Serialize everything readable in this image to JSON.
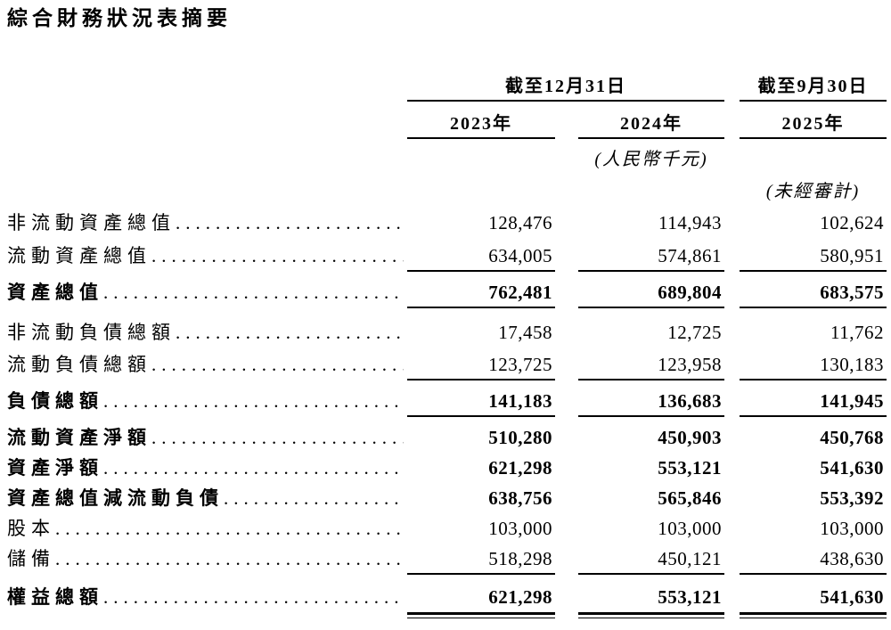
{
  "page": {
    "title": "綜合財務狀況表摘要"
  },
  "table": {
    "header": {
      "period_group_1": "截至12月31日",
      "period_group_2": "截至9月30日",
      "years": [
        "2023年",
        "2024年",
        "2025年"
      ],
      "currency_note": "(人民幣千元)",
      "audit_note": "(未經審計)"
    },
    "rows": [
      {
        "label": "非流動資產總值",
        "values": [
          "128,476",
          "114,943",
          "102,624"
        ]
      },
      {
        "label": "流動資產總值",
        "values": [
          "634,005",
          "574,861",
          "580,951"
        ]
      },
      {
        "label": "資產總值",
        "values": [
          "762,481",
          "689,804",
          "683,575"
        ]
      },
      {
        "label": "非流動負債總額",
        "values": [
          "17,458",
          "12,725",
          "11,762"
        ]
      },
      {
        "label": "流動負債總額",
        "values": [
          "123,725",
          "123,958",
          "130,183"
        ]
      },
      {
        "label": "負債總額",
        "values": [
          "141,183",
          "136,683",
          "141,945"
        ]
      },
      {
        "label": "流動資產淨額",
        "values": [
          "510,280",
          "450,903",
          "450,768"
        ]
      },
      {
        "label": "資產淨額",
        "values": [
          "621,298",
          "553,121",
          "541,630"
        ]
      },
      {
        "label": "資產總值減流動負債",
        "values": [
          "638,756",
          "565,846",
          "553,392"
        ]
      },
      {
        "label": "股本",
        "values": [
          "103,000",
          "103,000",
          "103,000"
        ]
      },
      {
        "label": "儲備",
        "values": [
          "518,298",
          "450,121",
          "438,630"
        ]
      },
      {
        "label": "權益總額",
        "values": [
          "621,298",
          "553,121",
          "541,630"
        ]
      }
    ]
  }
}
